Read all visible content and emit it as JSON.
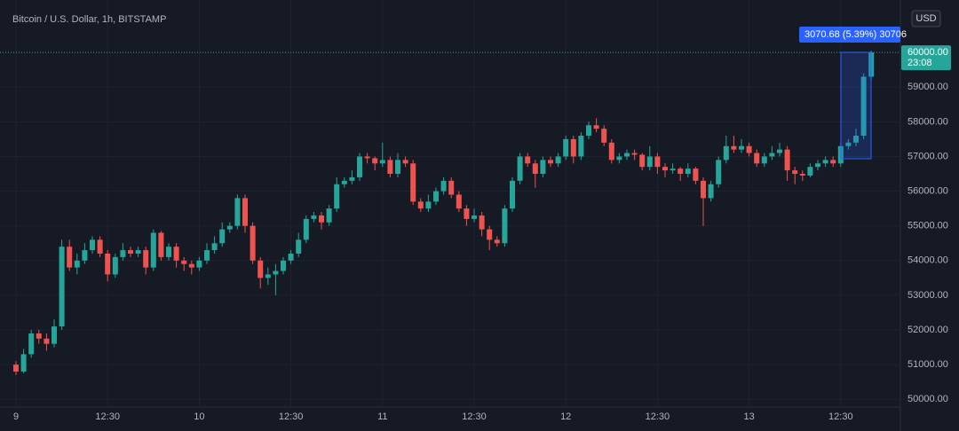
{
  "chart_data": {
    "type": "candlestick",
    "title": "Bitcoin / U.S. Dollar, 1h, BITSTAMP",
    "currency": "USD",
    "measure_label": "3070.68 (5.39%) 30706",
    "last_price": {
      "value": 60000,
      "label": "60000.00"
    },
    "countdown": "23:08",
    "up_color": "#26a69a",
    "down_color": "#ef5350",
    "grid": true,
    "ylim": [
      49700,
      61000
    ],
    "yticks": [
      {
        "value": 50000,
        "label": "50000.00"
      },
      {
        "value": 51000,
        "label": "51000.00"
      },
      {
        "value": 52000,
        "label": "52000.00"
      },
      {
        "value": 53000,
        "label": "53000.00"
      },
      {
        "value": 54000,
        "label": "54000.00"
      },
      {
        "value": 55000,
        "label": "55000.00"
      },
      {
        "value": 56000,
        "label": "56000.00"
      },
      {
        "value": 57000,
        "label": "57000.00"
      },
      {
        "value": 58000,
        "label": "58000.00"
      },
      {
        "value": 59000,
        "label": "59000.00"
      }
    ],
    "categories": [
      "9",
      null,
      null,
      null,
      null,
      null,
      null,
      null,
      null,
      null,
      null,
      null,
      "12:30",
      null,
      null,
      null,
      null,
      null,
      null,
      null,
      null,
      null,
      null,
      null,
      "10",
      null,
      null,
      null,
      null,
      null,
      null,
      null,
      null,
      null,
      null,
      null,
      "12:30",
      null,
      null,
      null,
      null,
      null,
      null,
      null,
      null,
      null,
      null,
      null,
      "11",
      null,
      null,
      null,
      null,
      null,
      null,
      null,
      null,
      null,
      null,
      null,
      "12:30",
      null,
      null,
      null,
      null,
      null,
      null,
      null,
      null,
      null,
      null,
      null,
      "12",
      null,
      null,
      null,
      null,
      null,
      null,
      null,
      null,
      null,
      null,
      null,
      "12:30",
      null,
      null,
      null,
      null,
      null,
      null,
      null,
      null,
      null,
      null,
      null,
      "13",
      null,
      null,
      null,
      null,
      null,
      null,
      null,
      null,
      null,
      null,
      null,
      "12:30",
      null,
      null,
      null,
      null
    ],
    "open": [
      51000,
      50800,
      51300,
      51900,
      51750,
      51600,
      52100,
      54400,
      53800,
      54000,
      54300,
      54600,
      54200,
      53600,
      54100,
      54300,
      54200,
      54300,
      53800,
      54800,
      54100,
      54400,
      54000,
      53900,
      53800,
      54000,
      54300,
      54500,
      54900,
      55000,
      55800,
      55000,
      54000,
      53500,
      53600,
      53700,
      54000,
      54200,
      54600,
      55200,
      55300,
      55100,
      55500,
      56200,
      56300,
      56400,
      57000,
      56950,
      56800,
      56900,
      56500,
      56900,
      56800,
      55700,
      55500,
      55700,
      56000,
      56300,
      55900,
      55500,
      55200,
      55300,
      54900,
      54600,
      54500,
      55500,
      56300,
      57000,
      56800,
      56500,
      56900,
      56800,
      57000,
      57500,
      57000,
      57600,
      57900,
      57800,
      57400,
      56900,
      57000,
      57100,
      57050,
      56700,
      57000,
      56700,
      56600,
      56650,
      56500,
      56650,
      56300,
      55800,
      56200,
      56900,
      57300,
      57200,
      57300,
      57100,
      56800,
      57000,
      57100,
      57200,
      56600,
      56500,
      56450,
      56700,
      56800,
      56900,
      56800,
      57300,
      57400,
      57600,
      59300
    ],
    "high": [
      51100,
      51450,
      52000,
      52000,
      51900,
      52300,
      54600,
      54600,
      54200,
      54500,
      54700,
      54700,
      54300,
      54200,
      54500,
      54400,
      54400,
      54400,
      54900,
      54850,
      54500,
      54500,
      54100,
      54000,
      54100,
      54500,
      54700,
      55100,
      55100,
      55900,
      55900,
      55100,
      54100,
      53800,
      53900,
      54100,
      54300,
      54800,
      55300,
      55400,
      55400,
      55600,
      56400,
      56400,
      56600,
      57100,
      57100,
      57000,
      57400,
      57000,
      57100,
      57000,
      56900,
      55800,
      55900,
      56100,
      56400,
      56400,
      56000,
      55600,
      55500,
      55400,
      55000,
      54700,
      55600,
      56400,
      57100,
      57100,
      56900,
      57000,
      57000,
      57100,
      57600,
      57600,
      57700,
      58000,
      58100,
      57900,
      57500,
      57100,
      57200,
      57200,
      57100,
      57300,
      57100,
      56800,
      56800,
      56700,
      56800,
      56700,
      56400,
      56300,
      57000,
      57600,
      57600,
      57500,
      57400,
      57200,
      57100,
      57300,
      57400,
      57300,
      56700,
      56600,
      56800,
      56900,
      57000,
      57000,
      57400,
      57500,
      57800,
      59400,
      60050
    ],
    "low": [
      50700,
      50750,
      51200,
      51600,
      51400,
      51500,
      52000,
      53700,
      53600,
      53900,
      54200,
      54100,
      53400,
      53500,
      54000,
      54100,
      54100,
      53600,
      53700,
      54000,
      54000,
      53800,
      53700,
      53600,
      53700,
      53900,
      54200,
      54400,
      54800,
      54900,
      54800,
      53900,
      53200,
      53300,
      53000,
      53600,
      53900,
      54100,
      54500,
      55100,
      54900,
      55000,
      55400,
      56100,
      56200,
      56300,
      56800,
      56600,
      56700,
      56400,
      56400,
      56700,
      55600,
      55400,
      55400,
      55600,
      55900,
      55800,
      55400,
      55000,
      55100,
      54700,
      54300,
      54400,
      54400,
      55400,
      56200,
      56700,
      56100,
      56400,
      56700,
      56700,
      56900,
      56800,
      56900,
      57500,
      57700,
      57300,
      56800,
      56800,
      56900,
      56900,
      56600,
      56600,
      56500,
      56400,
      56500,
      56300,
      56400,
      56200,
      55000,
      55700,
      56100,
      56800,
      57100,
      57100,
      57000,
      56700,
      56700,
      56900,
      57000,
      56300,
      56200,
      56300,
      56400,
      56600,
      56700,
      56700,
      56700,
      57200,
      57300,
      57500,
      59200
    ],
    "close": [
      50800,
      51300,
      51900,
      51750,
      51600,
      52100,
      54400,
      53800,
      54000,
      54300,
      54600,
      54200,
      53600,
      54100,
      54300,
      54200,
      54300,
      53800,
      54800,
      54100,
      54400,
      54000,
      53900,
      53800,
      54000,
      54300,
      54500,
      54900,
      55000,
      55800,
      55000,
      54000,
      53500,
      53600,
      53700,
      54000,
      54200,
      54600,
      55200,
      55300,
      55100,
      55500,
      56200,
      56300,
      56400,
      57000,
      56950,
      56800,
      56900,
      56500,
      56900,
      56800,
      55700,
      55500,
      55700,
      56000,
      56300,
      55900,
      55500,
      55200,
      55300,
      54900,
      54600,
      54500,
      55500,
      56300,
      57000,
      56800,
      56500,
      56900,
      56800,
      57000,
      57500,
      57000,
      57600,
      57900,
      57800,
      57400,
      56900,
      57000,
      57100,
      57050,
      56700,
      57000,
      56700,
      56600,
      56650,
      56500,
      56650,
      56300,
      55800,
      56200,
      56900,
      57300,
      57200,
      57300,
      57100,
      56800,
      57000,
      57100,
      57200,
      56600,
      56500,
      56450,
      56700,
      56800,
      56900,
      56800,
      57300,
      57400,
      57600,
      59300,
      60000
    ]
  }
}
